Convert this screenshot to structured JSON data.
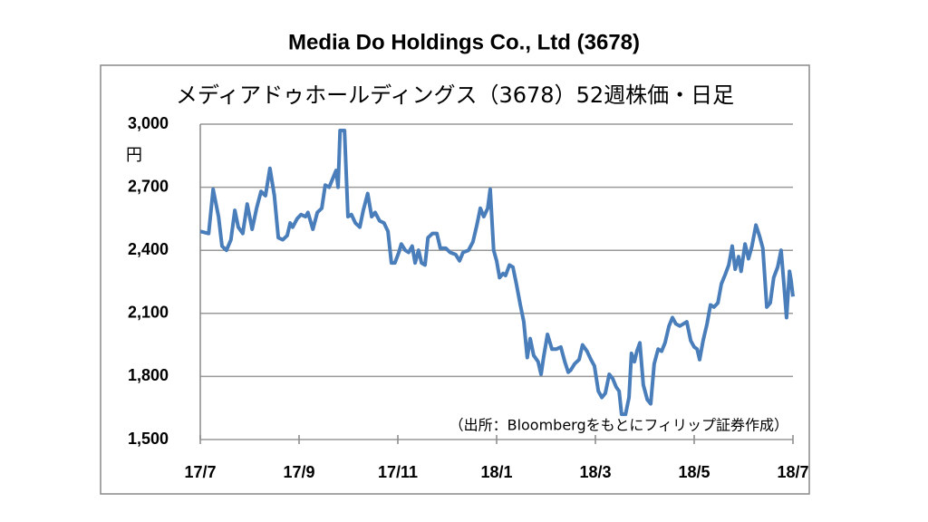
{
  "chart_data": {
    "type": "line",
    "title": "Media Do Holdings Co., Ltd (3678)",
    "subtitle": "メディアドゥホールディングス（3678）52週株価・日足",
    "y_label": "円",
    "annotation": "（出所：Bloombergをもとにフィリップ証券作成）",
    "x": [
      0,
      0.17,
      0.26,
      0.37,
      0.44,
      0.53,
      0.62,
      0.7,
      0.77,
      0.86,
      0.95,
      1.05,
      1.14,
      1.23,
      1.32,
      1.41,
      1.5,
      1.58,
      1.67,
      1.76,
      1.82,
      1.87,
      1.96,
      2.04,
      2.13,
      2.18,
      2.28,
      2.37,
      2.46,
      2.53,
      2.61,
      2.68,
      2.75,
      2.79,
      2.83,
      2.92,
      2.99,
      3.06,
      3.14,
      3.23,
      3.3,
      3.39,
      3.47,
      3.54,
      3.63,
      3.72,
      3.8,
      3.87,
      3.94,
      4.02,
      4.07,
      4.15,
      4.22,
      4.29,
      4.35,
      4.42,
      4.48,
      4.55,
      4.61,
      4.7,
      4.79,
      4.86,
      4.97,
      5.06,
      5.17,
      5.25,
      5.32,
      5.43,
      5.52,
      5.6,
      5.67,
      5.74,
      5.82,
      5.87,
      5.94,
      6.0,
      6.06,
      6.13,
      6.18,
      6.26,
      6.33,
      6.4,
      6.48,
      6.55,
      6.62,
      6.68,
      6.75,
      6.84,
      6.9,
      6.95,
      7.03,
      7.12,
      7.21,
      7.3,
      7.38,
      7.45,
      7.5,
      7.58,
      7.67,
      7.74,
      7.83,
      7.91,
      7.98,
      8.06,
      8.13,
      8.2,
      8.28,
      8.35,
      8.42,
      8.48,
      8.53,
      8.61,
      8.68,
      8.73,
      8.79,
      8.84,
      8.9,
      8.97,
      9.05,
      9.12,
      9.19,
      9.27,
      9.34,
      9.41,
      9.49,
      9.56,
      9.63,
      9.71,
      9.78,
      9.85,
      9.93,
      10.0,
      10.06,
      10.11,
      10.18,
      10.26,
      10.33,
      10.4,
      10.48,
      10.55,
      10.62,
      10.7,
      10.77,
      10.83,
      10.9,
      10.95,
      11.03,
      11.1,
      11.17,
      11.25,
      11.32,
      11.39,
      11.47,
      11.54,
      11.61,
      11.69,
      11.76,
      11.82,
      11.87,
      11.93,
      11.96,
      12.0
    ],
    "series": [
      {
        "name": "株価",
        "color": "#4a7ebb",
        "values": [
          2490,
          2480,
          2690,
          2560,
          2420,
          2400,
          2450,
          2590,
          2510,
          2480,
          2620,
          2500,
          2600,
          2680,
          2660,
          2790,
          2660,
          2460,
          2450,
          2470,
          2530,
          2510,
          2550,
          2570,
          2560,
          2580,
          2500,
          2580,
          2600,
          2710,
          2700,
          2740,
          2780,
          2700,
          2970,
          2970,
          2560,
          2570,
          2530,
          2510,
          2590,
          2670,
          2560,
          2580,
          2540,
          2530,
          2490,
          2340,
          2340,
          2390,
          2430,
          2400,
          2390,
          2420,
          2340,
          2400,
          2340,
          2330,
          2460,
          2480,
          2480,
          2410,
          2410,
          2390,
          2380,
          2350,
          2390,
          2400,
          2440,
          2520,
          2600,
          2560,
          2600,
          2690,
          2400,
          2350,
          2270,
          2290,
          2280,
          2330,
          2320,
          2240,
          2140,
          2060,
          1890,
          1980,
          1900,
          1870,
          1810,
          1890,
          2000,
          1930,
          1930,
          1940,
          1870,
          1820,
          1830,
          1860,
          1880,
          1950,
          1920,
          1880,
          1850,
          1730,
          1700,
          1720,
          1810,
          1790,
          1750,
          1730,
          1620,
          1620,
          1700,
          1910,
          1870,
          1920,
          1960,
          1760,
          1690,
          1670,
          1860,
          1930,
          1920,
          1960,
          2040,
          2080,
          2050,
          2040,
          2050,
          2060,
          1970,
          1940,
          1930,
          1880,
          1970,
          2050,
          2140,
          2130,
          2150,
          2240,
          2280,
          2330,
          2420,
          2310,
          2370,
          2300,
          2430,
          2360,
          2420,
          2520,
          2470,
          2410,
          2130,
          2150,
          2270,
          2320,
          2400,
          2230,
          2080,
          2300,
          2260,
          2180
        ]
      }
    ],
    "xlim": [
      0,
      12
    ],
    "xticks": [
      {
        "value": 0,
        "label": "17/7"
      },
      {
        "value": 2,
        "label": "17/9"
      },
      {
        "value": 4,
        "label": "17/11"
      },
      {
        "value": 6,
        "label": "18/1"
      },
      {
        "value": 8,
        "label": "18/3"
      },
      {
        "value": 10,
        "label": "18/5"
      },
      {
        "value": 12,
        "label": "18/7"
      }
    ],
    "ylim": [
      1500,
      3000
    ],
    "yticks": [
      {
        "value": 1500,
        "label": "1,500"
      },
      {
        "value": 1800,
        "label": "1,800"
      },
      {
        "value": 2100,
        "label": "2,100"
      },
      {
        "value": 2400,
        "label": "2,400"
      },
      {
        "value": 2700,
        "label": "2,700"
      },
      {
        "value": 3000,
        "label": "3,000"
      }
    ],
    "grid": true
  }
}
